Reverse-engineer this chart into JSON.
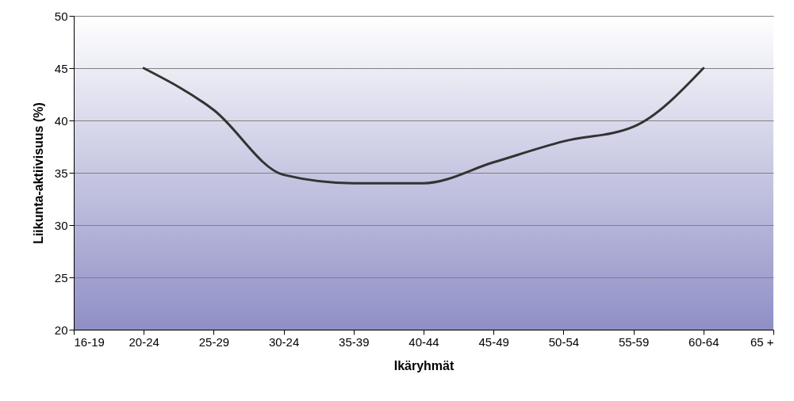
{
  "chart_data": {
    "type": "line",
    "xlabel": "Ikäryhmät",
    "ylabel": "Liikunta-aktiivisuus (%)",
    "categories": [
      "16-19",
      "20-24",
      "25-29",
      "30-24",
      "35-39",
      "40-44",
      "45-49",
      "50-54",
      "55-59",
      "60-64",
      "65 +"
    ],
    "series": [
      {
        "color": "#333333",
        "values": [
          null,
          45,
          41,
          34.8,
          34,
          34,
          36,
          38,
          39.4,
          45,
          null
        ]
      }
    ],
    "ylim": [
      20,
      50
    ],
    "yticks": [
      20,
      25,
      30,
      35,
      40,
      45,
      50
    ],
    "grid": "y",
    "marker": "none",
    "line_style": "solid"
  }
}
